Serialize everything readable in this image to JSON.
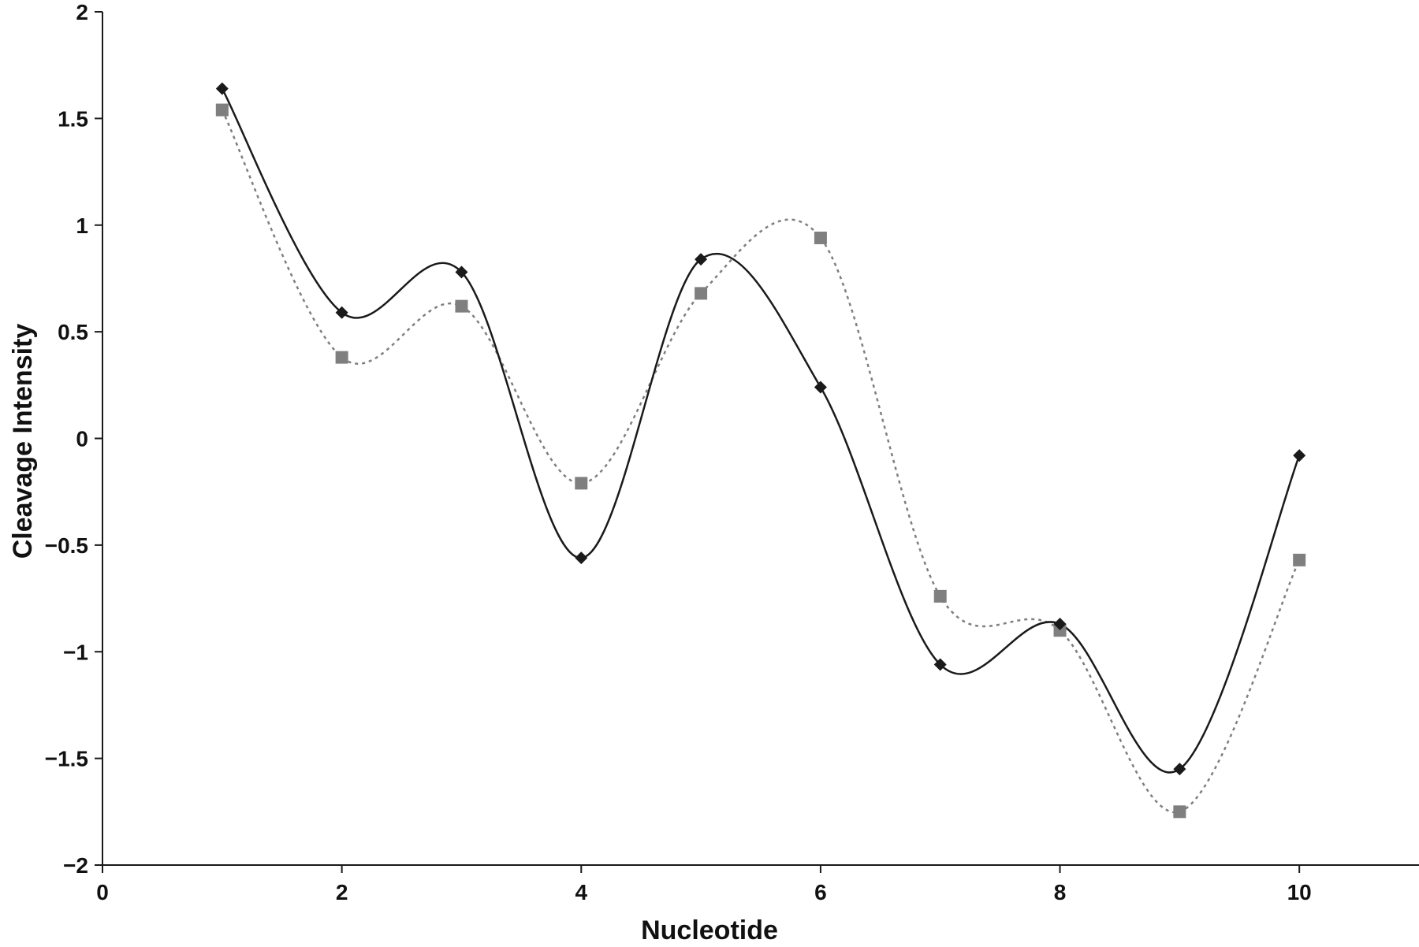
{
  "chart_data": {
    "type": "line",
    "title": "",
    "xlabel": "Nucleotide",
    "ylabel": "Cleavage Intensity",
    "xlim": [
      0,
      11
    ],
    "ylim": [
      -2,
      2
    ],
    "x_ticks": [
      0,
      2,
      4,
      6,
      8,
      10
    ],
    "x_tick_labels": [
      "0",
      "2",
      "4",
      "6",
      "8",
      "10"
    ],
    "y_ticks": [
      -2,
      -1.5,
      -1,
      -0.5,
      0,
      0.5,
      1,
      1.5,
      2
    ],
    "y_tick_labels": [
      "−2",
      "−1.5",
      "−1",
      "−0.5",
      "0",
      "0.5",
      "1",
      "1.5",
      "2"
    ],
    "grid": false,
    "legend": "none",
    "x": [
      1,
      2,
      3,
      4,
      5,
      6,
      7,
      8,
      9,
      10
    ],
    "series": [
      {
        "marker": "diamond",
        "line_style": "solid-smoothed",
        "color": "#1a1a1a",
        "values": [
          1.64,
          0.59,
          0.78,
          -0.56,
          0.84,
          0.24,
          -1.06,
          -0.87,
          -1.55,
          -0.08
        ]
      },
      {
        "marker": "square",
        "line_style": "dotted-smoothed",
        "color": "#7f7f7f",
        "values": [
          1.54,
          0.38,
          0.62,
          -0.21,
          0.68,
          0.94,
          -0.74,
          -0.9,
          -1.75,
          -0.57
        ]
      }
    ]
  }
}
